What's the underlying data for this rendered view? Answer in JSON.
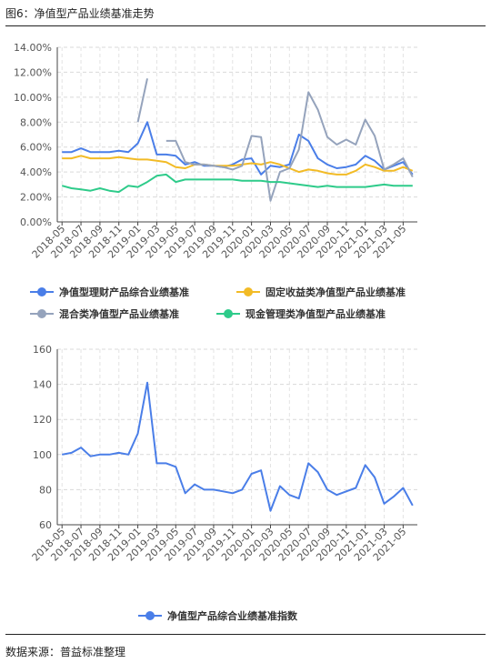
{
  "figure": {
    "title": "图6：净值型产品业绩基准走势",
    "source": "数据来源：普益标准整理"
  },
  "chart_data": [
    {
      "type": "line",
      "x": [
        "2018-05",
        "2018-06",
        "2018-07",
        "2018-08",
        "2018-09",
        "2018-10",
        "2018-11",
        "2018-12",
        "2019-01",
        "2019-02",
        "2019-03",
        "2019-04",
        "2019-05",
        "2019-06",
        "2019-07",
        "2019-08",
        "2019-09",
        "2019-10",
        "2019-11",
        "2019-12",
        "2020-01",
        "2020-02",
        "2020-03",
        "2020-04",
        "2020-05",
        "2020-06",
        "2020-07",
        "2020-08",
        "2020-09",
        "2020-10",
        "2020-11",
        "2020-12",
        "2021-01",
        "2021-02",
        "2021-03",
        "2021-04",
        "2021-05",
        "2021-06"
      ],
      "xticks": [
        "2018-05",
        "2018-07",
        "2018-09",
        "2018-11",
        "2019-01",
        "2019-03",
        "2019-05",
        "2019-07",
        "2019-09",
        "2019-11",
        "2020-01",
        "2020-03",
        "2020-05",
        "2020-07",
        "2020-09",
        "2020-11",
        "2021-01",
        "2021-03",
        "2021-05"
      ],
      "yticks": [
        "0.00%",
        "2.00%",
        "4.00%",
        "6.00%",
        "8.00%",
        "10.00%",
        "12.00%",
        "14.00%"
      ],
      "ylim": [
        0,
        14
      ],
      "grid": true,
      "legend": "bottom",
      "series": [
        {
          "name": "净值型理财产品综合业绩基准",
          "color": "#4a7ee8",
          "values": [
            5.6,
            5.6,
            5.9,
            5.6,
            5.6,
            5.6,
            5.7,
            5.6,
            6.3,
            8.0,
            5.4,
            5.4,
            5.3,
            4.6,
            4.8,
            4.5,
            4.5,
            4.4,
            4.6,
            5.0,
            5.1,
            3.8,
            4.5,
            4.4,
            4.6,
            7.0,
            6.5,
            5.1,
            4.6,
            4.3,
            4.4,
            4.6,
            5.3,
            4.9,
            4.2,
            4.5,
            4.8,
            3.8
          ]
        },
        {
          "name": "固定收益类净值型产品业绩基准",
          "color": "#f2bb26",
          "values": [
            5.1,
            5.1,
            5.3,
            5.1,
            5.1,
            5.1,
            5.2,
            5.1,
            5.0,
            5.0,
            4.9,
            4.8,
            4.4,
            4.3,
            4.6,
            4.6,
            4.5,
            4.5,
            4.5,
            4.6,
            4.7,
            4.6,
            4.8,
            4.6,
            4.3,
            4.0,
            4.2,
            4.1,
            3.9,
            3.8,
            3.8,
            4.1,
            4.6,
            4.4,
            4.1,
            4.1,
            4.4,
            4.1
          ]
        },
        {
          "name": "混合类净值型产品业绩基准",
          "color": "#95a3bc",
          "values": [
            null,
            null,
            null,
            null,
            null,
            null,
            null,
            null,
            8.0,
            11.5,
            null,
            6.5,
            6.5,
            4.8,
            4.6,
            4.6,
            4.5,
            4.4,
            4.2,
            4.5,
            6.9,
            6.8,
            1.7,
            4.0,
            4.3,
            5.8,
            10.4,
            9.0,
            6.8,
            6.2,
            6.6,
            6.2,
            8.2,
            6.9,
            4.2,
            4.6,
            5.1,
            3.6
          ]
        },
        {
          "name": "现金管理类净值型产品业绩基准",
          "color": "#2ecb8a",
          "values": [
            2.9,
            2.7,
            2.6,
            2.5,
            2.7,
            2.5,
            2.4,
            2.9,
            2.8,
            3.2,
            3.7,
            3.8,
            3.2,
            3.4,
            3.4,
            3.4,
            3.4,
            3.4,
            3.4,
            3.3,
            3.3,
            3.3,
            3.2,
            3.2,
            3.1,
            3.0,
            2.9,
            2.8,
            2.9,
            2.8,
            2.8,
            2.8,
            2.8,
            2.9,
            3.0,
            2.9,
            2.9,
            2.9
          ]
        }
      ]
    },
    {
      "type": "line",
      "x": [
        "2018-05",
        "2018-06",
        "2018-07",
        "2018-08",
        "2018-09",
        "2018-10",
        "2018-11",
        "2018-12",
        "2019-01",
        "2019-02",
        "2019-03",
        "2019-04",
        "2019-05",
        "2019-06",
        "2019-07",
        "2019-08",
        "2019-09",
        "2019-10",
        "2019-11",
        "2019-12",
        "2020-01",
        "2020-02",
        "2020-03",
        "2020-04",
        "2020-05",
        "2020-06",
        "2020-07",
        "2020-08",
        "2020-09",
        "2020-10",
        "2020-11",
        "2020-12",
        "2021-01",
        "2021-02",
        "2021-03",
        "2021-04",
        "2021-05",
        "2021-06"
      ],
      "xticks": [
        "2018-05",
        "2018-07",
        "2018-09",
        "2018-11",
        "2019-01",
        "2019-03",
        "2019-05",
        "2019-07",
        "2019-09",
        "2019-11",
        "2020-01",
        "2020-03",
        "2020-05",
        "2020-07",
        "2020-09",
        "2020-11",
        "2021-01",
        "2021-03",
        "2021-05"
      ],
      "yticks": [
        "60",
        "80",
        "100",
        "120",
        "140",
        "160"
      ],
      "ylim": [
        60,
        160
      ],
      "grid": true,
      "legend": "bottom",
      "series": [
        {
          "name": "净值型产品综合业绩基准指数",
          "color": "#4a7ee8",
          "values": [
            100,
            101,
            104,
            99,
            100,
            100,
            101,
            100,
            112,
            141,
            95,
            95,
            93,
            78,
            83,
            80,
            80,
            79,
            78,
            80,
            89,
            91,
            68,
            82,
            77,
            75,
            95,
            90,
            80,
            77,
            79,
            81,
            94,
            87,
            72,
            76,
            81,
            71
          ]
        }
      ]
    }
  ]
}
